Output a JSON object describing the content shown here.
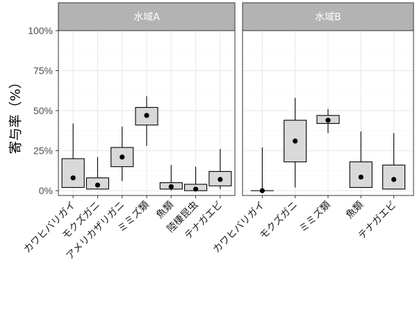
{
  "chart_data": {
    "type": "boxplot",
    "ylabel": "寄与率（%）",
    "ylim": [
      -3,
      100
    ],
    "yticks": [
      0,
      25,
      50,
      75,
      100
    ],
    "ytick_labels": [
      "0%",
      "25%",
      "50%",
      "75%",
      "100%"
    ],
    "grid": true,
    "colors": {
      "strip": "#b3b3b3",
      "box_fill": "#d9d9d9",
      "grid_major": "#ebebeb",
      "grid_minor": "#f5f5f5",
      "panel_border": "#333333",
      "point": "#000000"
    },
    "facets": [
      {
        "title": "水域A",
        "categories": [
          "カワヒバリガイ",
          "モクズガニ",
          "アメリカザリガニ",
          "ミミズ類",
          "魚類",
          "陸棲昆虫",
          "テナガエビ"
        ],
        "boxes": [
          {
            "whisker_low": 2,
            "q1": 2,
            "q3": 20,
            "whisker_high": 42,
            "mean": 8
          },
          {
            "whisker_low": 1,
            "q1": 1,
            "q3": 8,
            "whisker_high": 21,
            "mean": 3.5
          },
          {
            "whisker_low": 6,
            "q1": 15,
            "q3": 27,
            "whisker_high": 40,
            "mean": 21
          },
          {
            "whisker_low": 28,
            "q1": 41,
            "q3": 52,
            "whisker_high": 59,
            "mean": 47
          },
          {
            "whisker_low": 0,
            "q1": 1,
            "q3": 5,
            "whisker_high": 16,
            "mean": 2.5
          },
          {
            "whisker_low": 0,
            "q1": 0,
            "q3": 4,
            "whisker_high": 15,
            "mean": 1
          },
          {
            "whisker_low": 1,
            "q1": 3,
            "q3": 12,
            "whisker_high": 26,
            "mean": 7
          }
        ]
      },
      {
        "title": "水域B",
        "categories": [
          "カワヒバリガイ",
          "モクズガニ",
          "ミミズ類",
          "魚類",
          "テナガエビ"
        ],
        "boxes": [
          {
            "whisker_low": 0,
            "q1": 0,
            "q3": 0,
            "whisker_high": 27,
            "mean": 0
          },
          {
            "whisker_low": 2,
            "q1": 18,
            "q3": 44,
            "whisker_high": 58,
            "mean": 31
          },
          {
            "whisker_low": 36,
            "q1": 42,
            "q3": 47,
            "whisker_high": 51,
            "mean": 44
          },
          {
            "whisker_low": 2,
            "q1": 2,
            "q3": 18,
            "whisker_high": 37,
            "mean": 8.5
          },
          {
            "whisker_low": 1,
            "q1": 1,
            "q3": 16,
            "whisker_high": 36,
            "mean": 7
          }
        ]
      }
    ]
  }
}
